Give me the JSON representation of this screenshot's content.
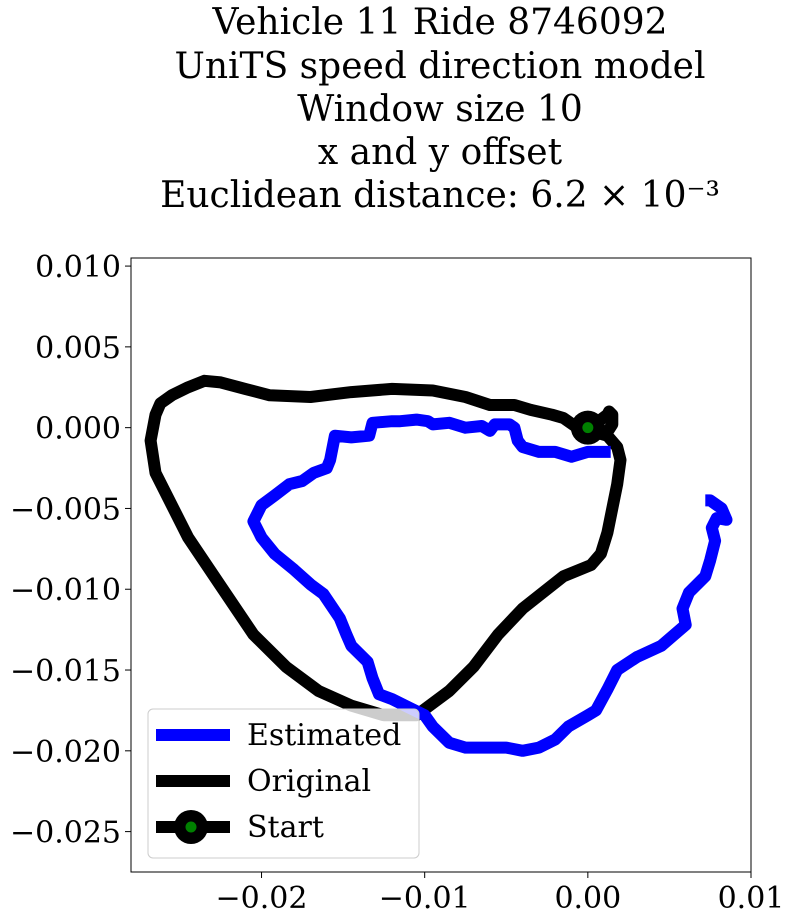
{
  "chart_data": {
    "type": "line",
    "title_lines": [
      "Vehicle 11 Ride 8746092",
      "UniTS speed direction model",
      "Window size 10",
      "x and y offset",
      "Euclidean distance: 6.2 × 10⁻³"
    ],
    "xlabel": "",
    "ylabel": "",
    "xlim": [
      -0.028,
      0.01
    ],
    "ylim": [
      -0.0275,
      0.0105
    ],
    "xticks": [
      -0.02,
      -0.01,
      0.0,
      0.01
    ],
    "xtick_labels": [
      "−0.02",
      "−0.01",
      "0.00",
      "0.01"
    ],
    "yticks": [
      0.01,
      0.005,
      0.0,
      -0.005,
      -0.01,
      -0.015,
      -0.02,
      -0.025
    ],
    "ytick_labels": [
      "0.010",
      "0.005",
      "0.000",
      "−0.005",
      "−0.010",
      "−0.015",
      "−0.020",
      "−0.025"
    ],
    "grid": false,
    "legend_position": "lower-left",
    "series": [
      {
        "name": "Estimated",
        "color": "#0000ff",
        "x": [
          0.0014,
          0.0,
          -0.001,
          -0.002,
          -0.003,
          -0.004,
          -0.0043,
          -0.0045,
          -0.0048,
          -0.0057,
          -0.006,
          -0.0065,
          -0.0075,
          -0.0085,
          -0.0095,
          -0.0098,
          -0.0105,
          -0.0115,
          -0.012,
          -0.0132,
          -0.0134,
          -0.0145,
          -0.0155,
          -0.0158,
          -0.016,
          -0.0168,
          -0.0175,
          -0.0183,
          -0.0192,
          -0.02,
          -0.0205,
          -0.02,
          -0.0192,
          -0.018,
          -0.017,
          -0.0162,
          -0.0152,
          -0.0148,
          -0.0145,
          -0.0135,
          -0.0132,
          -0.0128,
          -0.012,
          -0.011,
          -0.01,
          -0.0095,
          -0.0085,
          -0.0075,
          -0.0065,
          -0.005,
          -0.004,
          -0.003,
          -0.002,
          -0.0012,
          0.0,
          0.0005,
          0.0012,
          0.0018,
          0.003,
          0.0045,
          0.006,
          0.0058,
          0.0062,
          0.0072,
          0.0075,
          0.0078,
          0.0076,
          0.0079,
          0.0085,
          0.0082,
          0.0075,
          0.0072
        ],
        "y": [
          -0.0015,
          -0.0015,
          -0.0018,
          -0.0015,
          -0.0015,
          -0.0012,
          -0.0008,
          0.0,
          0.0002,
          0.0002,
          -0.0002,
          0.0001,
          0.0,
          0.0003,
          0.0002,
          0.0004,
          0.0005,
          0.0004,
          0.0004,
          0.0003,
          -0.0005,
          -0.0006,
          -0.0005,
          -0.002,
          -0.0025,
          -0.0028,
          -0.0033,
          -0.0035,
          -0.0042,
          -0.0048,
          -0.0058,
          -0.0068,
          -0.0078,
          -0.0088,
          -0.0097,
          -0.0103,
          -0.0118,
          -0.0128,
          -0.0135,
          -0.0145,
          -0.0155,
          -0.0165,
          -0.0168,
          -0.0173,
          -0.0178,
          -0.0185,
          -0.0195,
          -0.0198,
          -0.0198,
          -0.0198,
          -0.02,
          -0.0198,
          -0.0193,
          -0.0185,
          -0.0178,
          -0.0175,
          -0.0162,
          -0.015,
          -0.0142,
          -0.0135,
          -0.0122,
          -0.0112,
          -0.0102,
          -0.0092,
          -0.0082,
          -0.007,
          -0.0062,
          -0.0056,
          -0.0057,
          -0.005,
          -0.0045,
          -0.0045
        ]
      },
      {
        "name": "Original",
        "color": "#000000",
        "x": [
          0.0,
          0.0005,
          0.0012,
          0.0018,
          0.002,
          0.0018,
          0.0015,
          0.0012,
          0.0008,
          0.0002,
          -0.0015,
          -0.0025,
          -0.004,
          -0.0055,
          -0.007,
          -0.0085,
          -0.0105,
          -0.0125,
          -0.0145,
          -0.0165,
          -0.0185,
          -0.0205,
          -0.0225,
          -0.0245,
          -0.0265,
          -0.0268,
          -0.0265,
          -0.0262,
          -0.0255,
          -0.0245,
          -0.0235,
          -0.0225,
          -0.021,
          -0.0195,
          -0.017,
          -0.0145,
          -0.012,
          -0.0095,
          -0.0075,
          -0.006,
          -0.0045,
          -0.0035,
          -0.0022,
          -0.0015,
          -0.0005,
          0.0005,
          0.001,
          0.0013,
          0.0015,
          0.0015,
          0.0015,
          0.0013,
          0.0012,
          0.0008,
          0.0007
        ],
        "y": [
          0.0,
          -0.0003,
          -0.0005,
          -0.0012,
          -0.002,
          -0.0035,
          -0.005,
          -0.0065,
          -0.0078,
          -0.0085,
          -0.0092,
          -0.01,
          -0.0112,
          -0.0128,
          -0.0148,
          -0.0163,
          -0.0178,
          -0.0178,
          -0.0172,
          -0.0163,
          -0.0148,
          -0.0128,
          -0.0098,
          -0.0068,
          -0.0028,
          -0.0008,
          0.0008,
          0.0015,
          0.002,
          0.0025,
          0.0029,
          0.0028,
          0.0024,
          0.002,
          0.0019,
          0.0022,
          0.0024,
          0.0023,
          0.0019,
          0.0014,
          0.0014,
          0.0011,
          0.0008,
          0.0006,
          -0.0001,
          -0.0003,
          -0.0004,
          -0.0001,
          0.0002,
          0.0006,
          0.0008,
          0.001,
          0.0008,
          0.0005,
          0.0005
        ]
      },
      {
        "name": "Start",
        "color": "#000000",
        "marker_face": "#008000",
        "x": [
          0.0
        ],
        "y": [
          0.0
        ]
      }
    ]
  }
}
